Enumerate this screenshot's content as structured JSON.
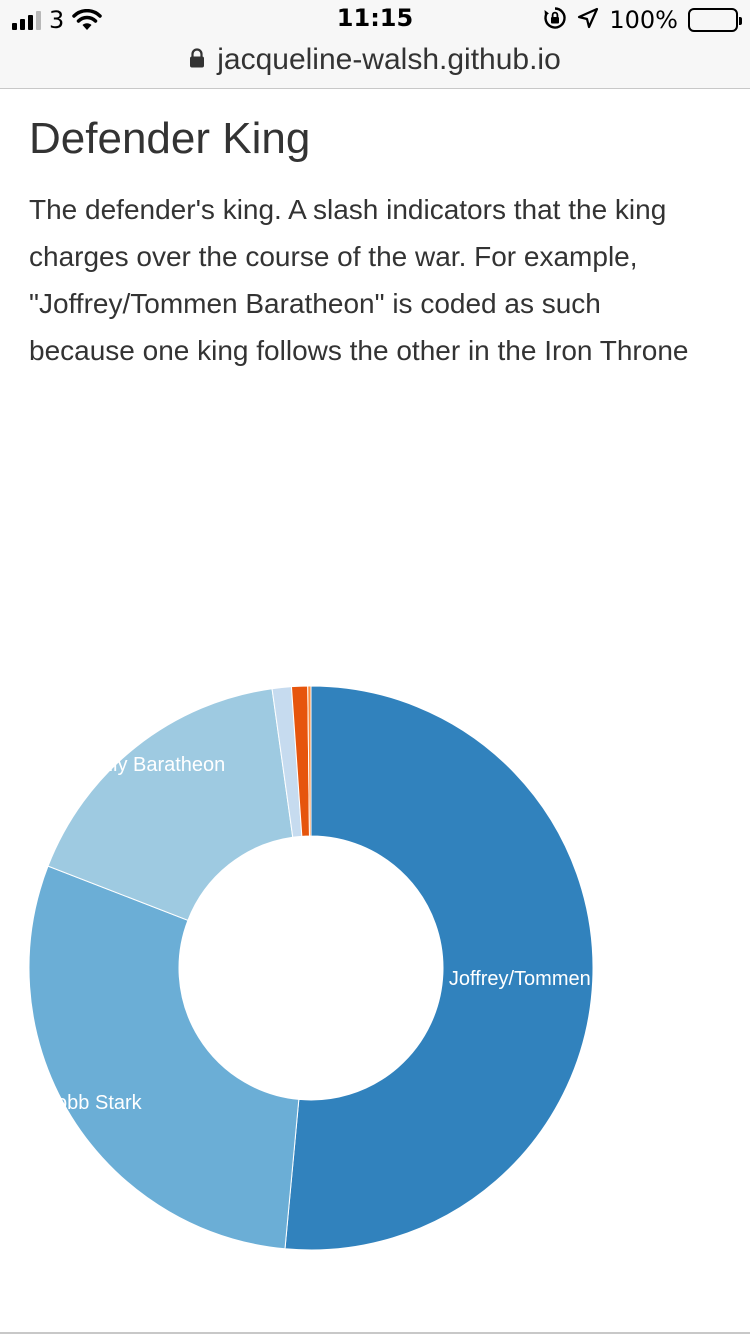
{
  "status_bar": {
    "carrier": "3",
    "time": "11:15",
    "battery": "100%"
  },
  "browser": {
    "url": "jacqueline-walsh.github.io"
  },
  "page": {
    "title": "Defender King",
    "description": "The defender's king. A slash indicators that the king charges over the course of the war. For example, \"Joffrey/Tommen Baratheon\" is coded as such because one king follows the other in the Iron Throne"
  },
  "chart_data": {
    "type": "pie",
    "donut": true,
    "legend": "none",
    "slices": [
      {
        "label": "Joffrey/Tommen Baratheon",
        "value": 14,
        "color": "#3182bd",
        "show_label": true
      },
      {
        "label": "Robb Stark",
        "value": 8,
        "color": "#6baed6",
        "show_label": true
      },
      {
        "label": "Renly Baratheon",
        "value": 4.6,
        "color": "#9ecae1",
        "show_label": true
      },
      {
        "label": "",
        "value": 0.3,
        "color": "#c6dbef",
        "show_label": false
      },
      {
        "label": "",
        "value": 0.25,
        "color": "#e6550d",
        "show_label": false
      },
      {
        "label": "",
        "value": 0.05,
        "color": "#fd8d3c",
        "show_label": false
      }
    ]
  }
}
